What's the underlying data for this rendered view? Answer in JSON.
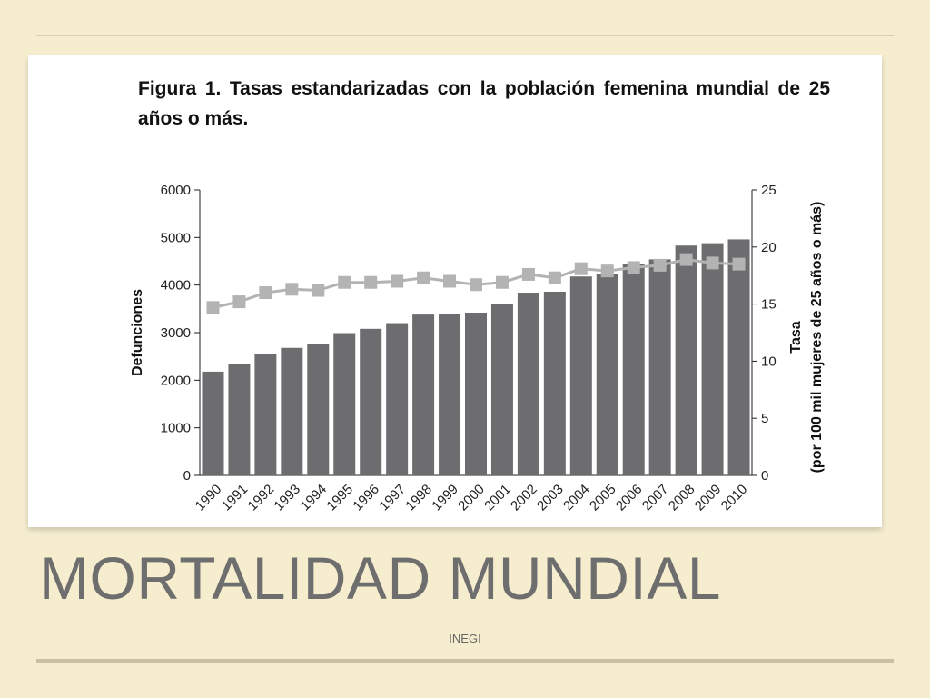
{
  "slide": {
    "title": "MORTALIDAD MUNDIAL",
    "footer": "INEGI"
  },
  "figure": {
    "caption": "Figura 1. Tasas estandarizadas con la población femenina mundial de 25 años o más."
  },
  "chart_data": {
    "type": "bar+line",
    "title": "Figura 1. Tasas estandarizadas con la población femenina mundial de 25 años o más.",
    "categories": [
      "1990",
      "1991",
      "1992",
      "1993",
      "1994",
      "1995",
      "1996",
      "1997",
      "1998",
      "1999",
      "2000",
      "2001",
      "2002",
      "2003",
      "2004",
      "2005",
      "2006",
      "2007",
      "2008",
      "2009",
      "2010"
    ],
    "series": [
      {
        "name": "Defunciones",
        "kind": "bar",
        "axis": "left",
        "color": "#6d6d70",
        "values": [
          2180,
          2350,
          2560,
          2680,
          2760,
          2990,
          3080,
          3200,
          3380,
          3400,
          3420,
          3600,
          3840,
          3860,
          4180,
          4230,
          4450,
          4540,
          4830,
          4880,
          4960
        ]
      },
      {
        "name": "Tasa",
        "kind": "line",
        "axis": "right",
        "color": "#b3b3b3",
        "values": [
          14.7,
          15.2,
          16.0,
          16.3,
          16.2,
          16.9,
          16.9,
          17.0,
          17.3,
          17.0,
          16.7,
          16.9,
          17.6,
          17.3,
          18.1,
          17.9,
          18.2,
          18.4,
          18.9,
          18.6,
          18.5
        ]
      }
    ],
    "ylabel_left": "Defunciones",
    "ylim_left": [
      0,
      6000
    ],
    "yticks_left": [
      "0",
      "1000",
      "2000",
      "3000",
      "4000",
      "5000",
      "6000"
    ],
    "ylabel_right_line1": "Tasa",
    "ylabel_right_line2": "(por 100 mil mujeres de 25 años o más)",
    "ylim_right": [
      0,
      25
    ],
    "yticks_right": [
      "0",
      "5",
      "10",
      "15",
      "20",
      "25"
    ],
    "grid": false,
    "legend": "none"
  }
}
